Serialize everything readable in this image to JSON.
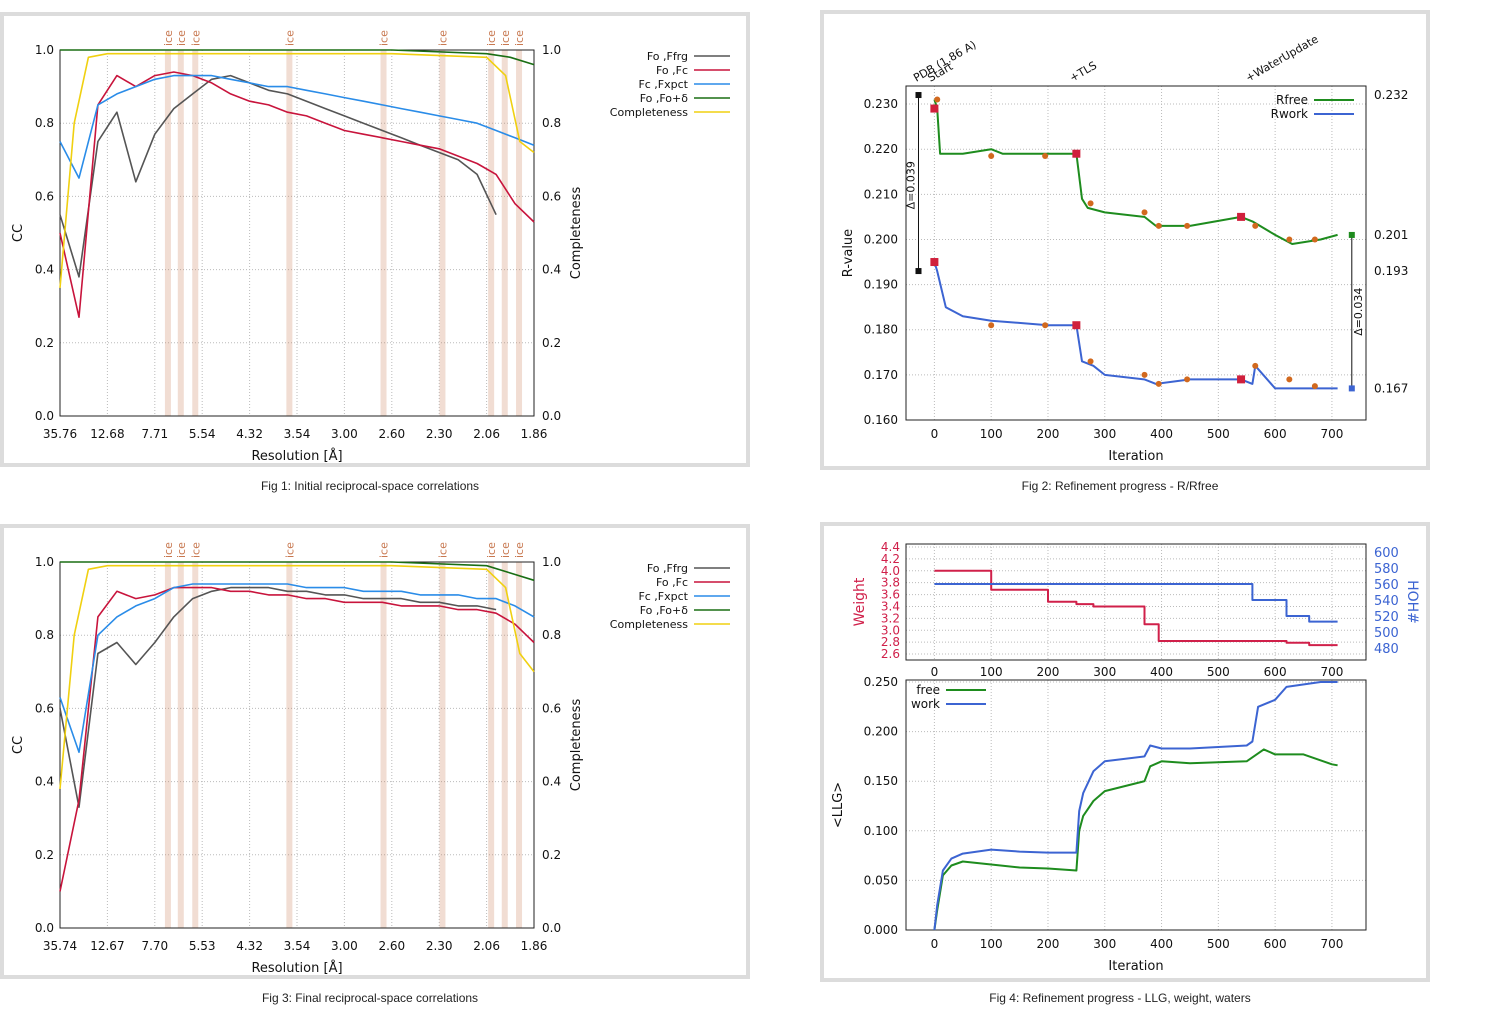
{
  "captions": {
    "fig1": "Fig 1:  Initial reciprocal-space correlations",
    "fig2": "Fig 2:  Refinement progress - R/Rfree",
    "fig3": "Fig 3:  Final reciprocal-space correlations",
    "fig4": "Fig 4:  Refinement progress - LLG, weight, waters"
  },
  "colors": {
    "fo_ffrg": "#555555",
    "fo_fc": "#c8143c",
    "fc_fxpct": "#2a8ce8",
    "fo_fo_delta": "#1a6e14",
    "completeness": "#f0d010",
    "rfree": "#1e8c1e",
    "rwork": "#3c64d2",
    "marker_red": "#d0203c",
    "marker_orange": "#d2691e",
    "ice": "#c87850",
    "weight": "#d0204a",
    "hoh": "#3c64d2"
  },
  "chart_data": [
    {
      "id": "fig1",
      "type": "line",
      "ylabel": "CC",
      "y2label": "Completeness",
      "xlabel": "Resolution [Å]",
      "xticks": [
        "35.76",
        "12.68",
        "7.71",
        "5.54",
        "4.32",
        "3.54",
        "3.00",
        "2.60",
        "2.30",
        "2.06",
        "1.86"
      ],
      "yticks": [
        "0.0",
        "0.2",
        "0.4",
        "0.6",
        "0.8",
        "1.0"
      ],
      "y2ticks": [
        "0.0",
        "0.2",
        "0.4",
        "0.6",
        "0.8",
        "1.0"
      ],
      "ylim": [
        0,
        1
      ],
      "ice_label": "ice",
      "ice_positions": [
        3.88,
        3.67,
        3.47,
        2.67,
        2.25,
        2.07,
        1.95,
        1.92,
        1.89
      ],
      "legend": [
        "Fo ,Ffrg",
        "Fo ,Fc",
        "Fc ,Fxpct",
        "Fo ,Fo+δ",
        "Completeness"
      ],
      "series": [
        {
          "name": "Fo ,Ffrg",
          "x": [
            0.0,
            0.04,
            0.08,
            0.12,
            0.16,
            0.2,
            0.24,
            0.28,
            0.32,
            0.36,
            0.4,
            0.44,
            0.48,
            0.52,
            0.56,
            0.6,
            0.64,
            0.68,
            0.72,
            0.76,
            0.8,
            0.84,
            0.88,
            0.92
          ],
          "y": [
            0.55,
            0.38,
            0.75,
            0.83,
            0.64,
            0.77,
            0.84,
            0.88,
            0.92,
            0.93,
            0.91,
            0.89,
            0.88,
            0.86,
            0.84,
            0.82,
            0.8,
            0.78,
            0.76,
            0.74,
            0.72,
            0.7,
            0.66,
            0.55
          ]
        },
        {
          "name": "Fo ,Fc",
          "x": [
            0.0,
            0.04,
            0.08,
            0.12,
            0.16,
            0.2,
            0.24,
            0.28,
            0.32,
            0.36,
            0.4,
            0.44,
            0.48,
            0.52,
            0.56,
            0.6,
            0.64,
            0.68,
            0.72,
            0.76,
            0.8,
            0.84,
            0.88,
            0.92,
            0.96,
            1.0
          ],
          "y": [
            0.5,
            0.27,
            0.85,
            0.93,
            0.9,
            0.93,
            0.94,
            0.93,
            0.91,
            0.88,
            0.86,
            0.85,
            0.83,
            0.82,
            0.8,
            0.78,
            0.77,
            0.76,
            0.75,
            0.74,
            0.73,
            0.71,
            0.69,
            0.66,
            0.58,
            0.53
          ]
        },
        {
          "name": "Fc ,Fxpct",
          "x": [
            0.0,
            0.04,
            0.08,
            0.12,
            0.16,
            0.2,
            0.24,
            0.28,
            0.32,
            0.36,
            0.4,
            0.44,
            0.48,
            0.52,
            0.56,
            0.6,
            0.64,
            0.68,
            0.72,
            0.76,
            0.8,
            0.84,
            0.88,
            0.92,
            0.96,
            1.0
          ],
          "y": [
            0.75,
            0.65,
            0.85,
            0.88,
            0.9,
            0.92,
            0.93,
            0.93,
            0.93,
            0.92,
            0.91,
            0.9,
            0.9,
            0.89,
            0.88,
            0.87,
            0.86,
            0.85,
            0.84,
            0.83,
            0.82,
            0.81,
            0.8,
            0.78,
            0.76,
            0.74
          ]
        },
        {
          "name": "Fo ,Fo+δ",
          "x": [
            0.0,
            0.1,
            0.3,
            0.5,
            0.7,
            0.9,
            0.95,
            1.0
          ],
          "y": [
            1.0,
            1.0,
            1.0,
            1.0,
            1.0,
            0.99,
            0.98,
            0.96
          ]
        },
        {
          "name": "Completeness",
          "x": [
            0.0,
            0.03,
            0.06,
            0.1,
            0.3,
            0.5,
            0.7,
            0.9,
            0.94,
            0.97,
            1.0
          ],
          "y": [
            0.35,
            0.8,
            0.98,
            0.99,
            0.99,
            0.99,
            0.99,
            0.98,
            0.93,
            0.75,
            0.72
          ]
        }
      ]
    },
    {
      "id": "fig2",
      "type": "line",
      "ylabel": "R-value",
      "xlabel": "Iteration",
      "xticks": [
        "0",
        "100",
        "200",
        "300",
        "400",
        "500",
        "600",
        "700"
      ],
      "yticks": [
        "0.160",
        "0.170",
        "0.180",
        "0.190",
        "0.200",
        "0.210",
        "0.220",
        "0.230"
      ],
      "y2ticks": [
        "0.232",
        "0.201",
        "0.193",
        "0.167"
      ],
      "xlim": [
        -50,
        760
      ],
      "ylim": [
        0.16,
        0.234
      ],
      "top_labels": [
        "PDB (1.86 A)",
        "Start",
        "+TLS",
        "+WaterUpdate"
      ],
      "delta_left": "Δ=0.039",
      "delta_right": "Δ=0.034",
      "series": [
        {
          "name": "Rfree",
          "x": [
            0,
            5,
            10,
            20,
            50,
            100,
            120,
            200,
            250,
            260,
            270,
            300,
            370,
            390,
            450,
            540,
            560,
            600,
            630,
            680,
            710
          ],
          "y": [
            0.231,
            0.229,
            0.219,
            0.219,
            0.219,
            0.22,
            0.219,
            0.219,
            0.219,
            0.209,
            0.207,
            0.206,
            0.205,
            0.203,
            0.203,
            0.205,
            0.204,
            0.201,
            0.199,
            0.2,
            0.201
          ]
        },
        {
          "name": "Rwork",
          "x": [
            0,
            5,
            20,
            50,
            100,
            200,
            250,
            260,
            280,
            300,
            370,
            390,
            450,
            540,
            560,
            565,
            600,
            630,
            680,
            710
          ],
          "y": [
            0.195,
            0.193,
            0.185,
            0.183,
            0.182,
            0.181,
            0.181,
            0.173,
            0.172,
            0.17,
            0.169,
            0.168,
            0.169,
            0.169,
            0.168,
            0.172,
            0.167,
            0.167,
            0.167,
            0.167
          ]
        }
      ]
    },
    {
      "id": "fig3",
      "type": "line",
      "ylabel": "CC",
      "y2label": "Completeness",
      "xlabel": "Resolution [Å]",
      "xticks": [
        "35.74",
        "12.67",
        "7.70",
        "5.53",
        "4.32",
        "3.54",
        "3.00",
        "2.60",
        "2.30",
        "2.06",
        "1.86"
      ],
      "yticks": [
        "0.0",
        "0.2",
        "0.4",
        "0.6",
        "0.8",
        "1.0"
      ],
      "y2ticks": [
        "0.0",
        "0.2",
        "0.4",
        "0.6",
        "0.8",
        "1.0"
      ],
      "ylim": [
        0,
        1
      ],
      "ice_label": "ice",
      "ice_positions": [
        3.88,
        3.67,
        3.47,
        2.67,
        2.25,
        2.07,
        1.95,
        1.92,
        1.89
      ],
      "legend": [
        "Fo ,Ffrg",
        "Fo ,Fc",
        "Fc ,Fxpct",
        "Fo ,Fo+δ",
        "Completeness"
      ],
      "series": [
        {
          "name": "Fo ,Ffrg",
          "x": [
            0.0,
            0.04,
            0.08,
            0.12,
            0.16,
            0.2,
            0.24,
            0.28,
            0.32,
            0.36,
            0.4,
            0.44,
            0.48,
            0.52,
            0.56,
            0.6,
            0.64,
            0.68,
            0.72,
            0.76,
            0.8,
            0.84,
            0.88,
            0.92
          ],
          "y": [
            0.6,
            0.33,
            0.75,
            0.78,
            0.72,
            0.78,
            0.85,
            0.9,
            0.92,
            0.93,
            0.93,
            0.93,
            0.92,
            0.92,
            0.91,
            0.91,
            0.9,
            0.9,
            0.9,
            0.89,
            0.89,
            0.88,
            0.88,
            0.87
          ]
        },
        {
          "name": "Fo ,Fc",
          "x": [
            0.0,
            0.04,
            0.08,
            0.12,
            0.16,
            0.2,
            0.24,
            0.28,
            0.32,
            0.36,
            0.4,
            0.44,
            0.48,
            0.52,
            0.56,
            0.6,
            0.64,
            0.68,
            0.72,
            0.76,
            0.8,
            0.84,
            0.88,
            0.92,
            0.96,
            1.0
          ],
          "y": [
            0.1,
            0.35,
            0.85,
            0.92,
            0.9,
            0.91,
            0.93,
            0.93,
            0.93,
            0.92,
            0.92,
            0.91,
            0.91,
            0.9,
            0.9,
            0.89,
            0.89,
            0.89,
            0.88,
            0.88,
            0.88,
            0.87,
            0.87,
            0.86,
            0.83,
            0.78
          ]
        },
        {
          "name": "Fc ,Fxpct",
          "x": [
            0.0,
            0.04,
            0.08,
            0.12,
            0.16,
            0.2,
            0.24,
            0.28,
            0.32,
            0.36,
            0.4,
            0.44,
            0.48,
            0.52,
            0.56,
            0.6,
            0.64,
            0.68,
            0.72,
            0.76,
            0.8,
            0.84,
            0.88,
            0.92,
            0.96,
            1.0
          ],
          "y": [
            0.63,
            0.48,
            0.8,
            0.85,
            0.88,
            0.9,
            0.93,
            0.94,
            0.94,
            0.94,
            0.94,
            0.94,
            0.94,
            0.93,
            0.93,
            0.93,
            0.92,
            0.92,
            0.92,
            0.91,
            0.91,
            0.91,
            0.9,
            0.9,
            0.88,
            0.85
          ]
        },
        {
          "name": "Fo ,Fo+δ",
          "x": [
            0.0,
            0.1,
            0.3,
            0.5,
            0.7,
            0.9,
            0.95,
            1.0
          ],
          "y": [
            1.0,
            1.0,
            1.0,
            1.0,
            1.0,
            0.99,
            0.97,
            0.95
          ]
        },
        {
          "name": "Completeness",
          "x": [
            0.0,
            0.03,
            0.06,
            0.1,
            0.3,
            0.5,
            0.7,
            0.9,
            0.94,
            0.97,
            1.0
          ],
          "y": [
            0.38,
            0.8,
            0.98,
            0.99,
            0.99,
            0.99,
            0.99,
            0.98,
            0.93,
            0.75,
            0.7
          ]
        }
      ]
    },
    {
      "id": "fig4",
      "type": "line",
      "top": {
        "ylabel": "Weight",
        "y2label": "HOH#",
        "yticks": [
          "2.6",
          "2.8",
          "3.0",
          "3.2",
          "3.4",
          "3.6",
          "3.8",
          "4.0",
          "4.2",
          "4.4"
        ],
        "y2ticks": [
          "480",
          "500",
          "520",
          "540",
          "560",
          "580",
          "600"
        ],
        "xticks": [
          "0",
          "100",
          "200",
          "300",
          "400",
          "500",
          "600",
          "700"
        ],
        "weight": {
          "x": [
            0,
            100,
            100,
            200,
            200,
            250,
            250,
            280,
            280,
            370,
            370,
            395,
            395,
            620,
            620,
            660,
            660,
            710
          ],
          "y": [
            4.0,
            4.0,
            3.68,
            3.68,
            3.48,
            3.48,
            3.44,
            3.44,
            3.4,
            3.4,
            3.1,
            3.1,
            2.82,
            2.82,
            2.79,
            2.79,
            2.75,
            2.75
          ]
        },
        "hoh": {
          "x": [
            0,
            560,
            560,
            620,
            620,
            660,
            660,
            710
          ],
          "y": [
            560,
            560,
            540,
            540,
            520,
            520,
            513,
            513
          ]
        }
      },
      "bottom": {
        "ylabel": "<LLG>",
        "xlabel": "Iteration",
        "xticks": [
          "0",
          "100",
          "200",
          "300",
          "400",
          "500",
          "600",
          "700"
        ],
        "yticks": [
          "0.000",
          "0.050",
          "0.100",
          "0.150",
          "0.200",
          "0.250"
        ],
        "ylim": [
          0,
          0.252
        ],
        "series": [
          {
            "name": "free",
            "x": [
              0,
              5,
              15,
              30,
              50,
              100,
              150,
              200,
              250,
              255,
              262,
              280,
              300,
              370,
              380,
              400,
              450,
              550,
              580,
              600,
              650,
              700,
              710
            ],
            "y": [
              0.0,
              0.02,
              0.055,
              0.065,
              0.069,
              0.066,
              0.063,
              0.062,
              0.06,
              0.1,
              0.115,
              0.13,
              0.14,
              0.15,
              0.165,
              0.17,
              0.168,
              0.17,
              0.182,
              0.177,
              0.177,
              0.167,
              0.166
            ]
          },
          {
            "name": "work",
            "x": [
              0,
              5,
              15,
              30,
              50,
              100,
              150,
              200,
              250,
              255,
              262,
              280,
              300,
              370,
              380,
              400,
              450,
              550,
              560,
              570,
              600,
              620,
              680,
              710
            ],
            "y": [
              0.0,
              0.025,
              0.06,
              0.072,
              0.077,
              0.081,
              0.079,
              0.078,
              0.078,
              0.12,
              0.138,
              0.16,
              0.17,
              0.175,
              0.186,
              0.183,
              0.183,
              0.186,
              0.19,
              0.225,
              0.232,
              0.245,
              0.25,
              0.25
            ]
          }
        ]
      }
    }
  ]
}
